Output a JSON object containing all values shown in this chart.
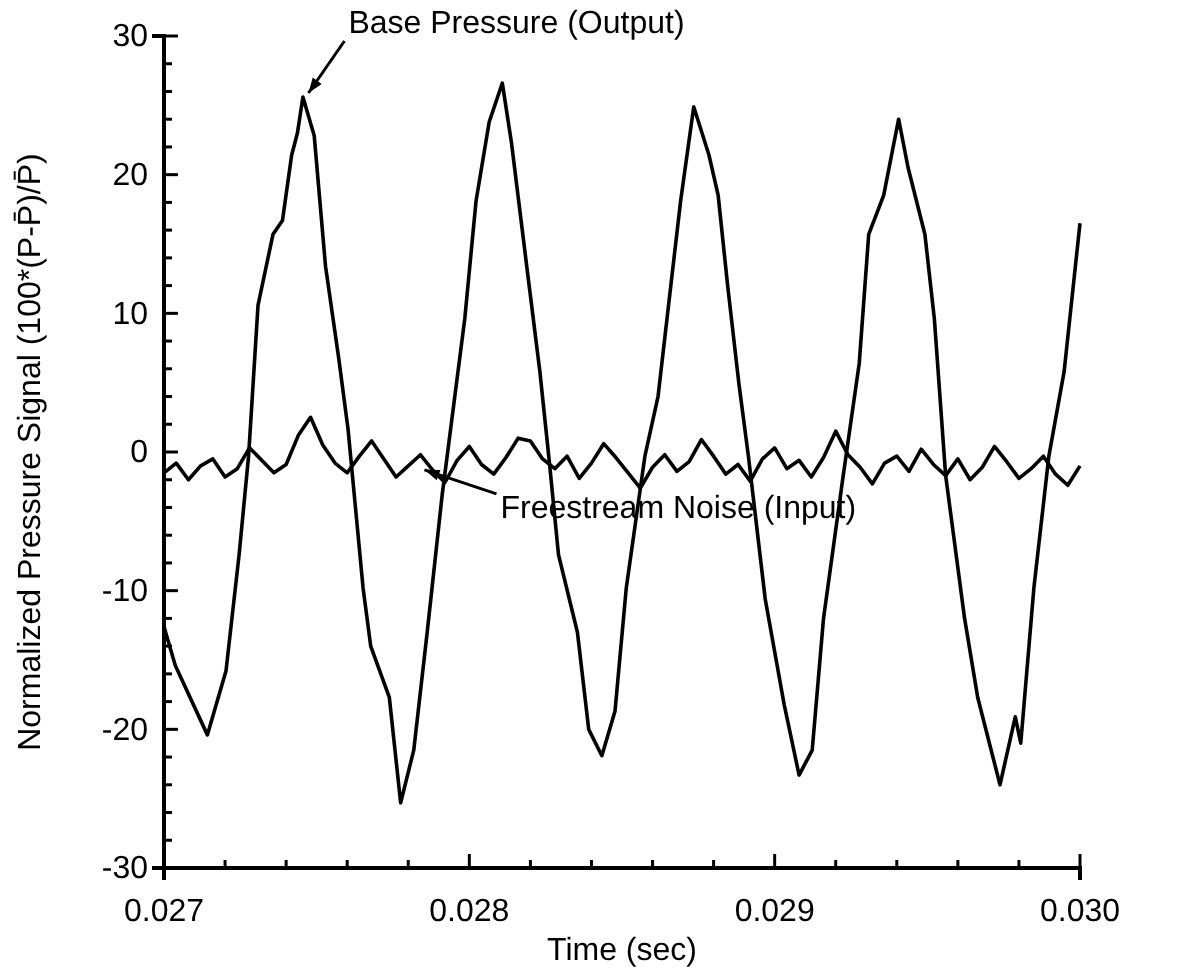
{
  "chart_data": {
    "type": "line",
    "xlabel": "Time (sec)",
    "ylabel": "Normalized Pressure Signal (100*(P-P̄)/P̄)",
    "xlim": [
      0.027,
      0.03
    ],
    "ylim": [
      -30,
      30
    ],
    "xticks": [
      0.027,
      {
        "value": 0.0272,
        "label": null
      },
      {
        "value": 0.0274,
        "label": null
      },
      {
        "value": 0.0276,
        "label": null
      },
      {
        "value": 0.0278,
        "label": null
      },
      0.028,
      {
        "value": 0.0282,
        "label": null
      },
      {
        "value": 0.0284,
        "label": null
      },
      {
        "value": 0.0286,
        "label": null
      },
      {
        "value": 0.0288,
        "label": null
      },
      0.029,
      {
        "value": 0.0292,
        "label": null
      },
      {
        "value": 0.0294,
        "label": null
      },
      {
        "value": 0.0296,
        "label": null
      },
      {
        "value": 0.0298,
        "label": null
      },
      {
        "value": 0.03,
        "label": "0.030"
      }
    ],
    "yticks": [
      -30,
      {
        "value": -28,
        "label": null
      },
      {
        "value": -26,
        "label": null
      },
      {
        "value": -24,
        "label": null
      },
      {
        "value": -22,
        "label": null
      },
      -20,
      {
        "value": -18,
        "label": null
      },
      {
        "value": -16,
        "label": null
      },
      {
        "value": -14,
        "label": null
      },
      {
        "value": -12,
        "label": null
      },
      -10,
      {
        "value": -8,
        "label": null
      },
      {
        "value": -6,
        "label": null
      },
      {
        "value": -4,
        "label": null
      },
      {
        "value": -2,
        "label": null
      },
      0,
      {
        "value": 2,
        "label": null
      },
      {
        "value": 4,
        "label": null
      },
      {
        "value": 6,
        "label": null
      },
      {
        "value": 8,
        "label": null
      },
      10,
      {
        "value": 12,
        "label": null
      },
      {
        "value": 14,
        "label": null
      },
      {
        "value": 16,
        "label": null
      },
      {
        "value": 18,
        "label": null
      },
      20,
      {
        "value": 22,
        "label": null
      },
      {
        "value": 24,
        "label": null
      },
      {
        "value": 26,
        "label": null
      },
      {
        "value": 28,
        "label": null
      },
      30
    ],
    "grid": false,
    "marker": "none",
    "line_style": "solid",
    "annotations": [
      {
        "text": "Base Pressure (Output)",
        "x": 0.02746,
        "y": 25.6
      },
      {
        "text": "Freestream Noise (Input)",
        "x": 0.02784,
        "y": -1
      }
    ],
    "series": [
      {
        "color": "#000000",
        "x": [
          0.027,
          0.027037,
          0.027142,
          0.027203,
          0.027246,
          0.027277,
          0.027308,
          0.027357,
          0.027388,
          0.027418,
          0.027437,
          0.027455,
          0.027492,
          0.027529,
          0.027572,
          0.027603,
          0.027652,
          0.027677,
          0.027738,
          0.027775,
          0.027818,
          0.027862,
          0.027911,
          0.027985,
          0.028022,
          0.028065,
          0.028108,
          0.028138,
          0.028188,
          0.028231,
          0.028262,
          0.028292,
          0.028354,
          0.028391,
          0.028434,
          0.028477,
          0.028514,
          0.028575,
          0.028618,
          0.028662,
          0.028692,
          0.028735,
          0.028785,
          0.028815,
          0.028846,
          0.028883,
          0.028914,
          0.028969,
          0.029031,
          0.02908,
          0.029123,
          0.02916,
          0.029222,
          0.029277,
          0.029308,
          0.029357,
          0.029406,
          0.029437,
          0.029492,
          0.029523,
          0.02956,
          0.029622,
          0.029665,
          0.029738,
          0.029788,
          0.029806,
          0.029849,
          0.029898,
          0.029948,
          0.03
        ],
        "values": [
          -12.6,
          -15.4,
          -20.4,
          -15.8,
          -7.4,
          -0.3,
          10.6,
          15.7,
          16.7,
          21.4,
          23,
          25.6,
          22.8,
          13.4,
          6.8,
          1.6,
          -9.8,
          -14,
          -17.7,
          -25.3,
          -21.5,
          -13,
          -3.1,
          9.6,
          18.1,
          23.8,
          26.6,
          22.3,
          13.4,
          5.8,
          -0.7,
          -7.4,
          -13,
          -20,
          -21.9,
          -18.7,
          -9.8,
          -0.3,
          4,
          12.4,
          18.1,
          24.9,
          21.4,
          18.5,
          12,
          4.9,
          -0.3,
          -10.6,
          -18.2,
          -23.3,
          -21.5,
          -12,
          -2.1,
          6.4,
          15.7,
          18.5,
          24,
          20.5,
          15.7,
          9.6,
          -1.7,
          -12,
          -17.7,
          -24,
          -19.1,
          -21,
          -9.8,
          -0.3,
          5.8,
          16.5
        ]
      },
      {
        "color": "#000000",
        "x": [
          0.027,
          0.02704,
          0.02708,
          0.02712,
          0.02716,
          0.0272,
          0.02724,
          0.02728,
          0.02732,
          0.02736,
          0.0274,
          0.02744,
          0.02748,
          0.02752,
          0.02756,
          0.0276,
          0.02764,
          0.02768,
          0.02772,
          0.02776,
          0.0278,
          0.02784,
          0.02788,
          0.02792,
          0.02796,
          0.028,
          0.02804,
          0.02808,
          0.02812,
          0.02816,
          0.0282,
          0.02824,
          0.02828,
          0.02832,
          0.02836,
          0.0284,
          0.02844,
          0.02848,
          0.02852,
          0.02856,
          0.0286,
          0.02864,
          0.02868,
          0.02872,
          0.02876,
          0.0288,
          0.02884,
          0.02888,
          0.02892,
          0.02896,
          0.029,
          0.02904,
          0.02908,
          0.02912,
          0.02916,
          0.0292,
          0.02924,
          0.02928,
          0.02932,
          0.02936,
          0.0294,
          0.02944,
          0.02948,
          0.02952,
          0.02956,
          0.0296,
          0.02964,
          0.02968,
          0.02972,
          0.02976,
          0.0298,
          0.02984,
          0.02988,
          0.02992,
          0.02996,
          0.03
        ],
        "values": [
          -1.5,
          -0.8,
          -2,
          -1,
          -0.5,
          -1.8,
          -1.2,
          0.3,
          -0.6,
          -1.5,
          -0.9,
          1.2,
          2.5,
          0.5,
          -0.8,
          -1.5,
          -0.3,
          0.8,
          -0.5,
          -1.8,
          -1,
          -0.2,
          -1.3,
          -2.2,
          -0.6,
          0.4,
          -0.9,
          -1.6,
          -0.4,
          1,
          0.8,
          -0.5,
          -1.2,
          -0.3,
          -1.9,
          -0.8,
          0.6,
          -0.4,
          -1.5,
          -2.6,
          -1.1,
          -0.2,
          -1.4,
          -0.7,
          0.9,
          -0.3,
          -1.6,
          -0.9,
          -2.1,
          -0.5,
          0.3,
          -1.2,
          -0.6,
          -1.8,
          -0.4,
          1.5,
          -0.2,
          -1.1,
          -2.3,
          -0.8,
          -0.3,
          -1.4,
          0.2,
          -0.9,
          -1.7,
          -0.5,
          -2,
          -1.1,
          0.4,
          -0.7,
          -1.9,
          -1.2,
          -0.3,
          -1.6,
          -2.4,
          -1.0
        ]
      }
    ]
  }
}
